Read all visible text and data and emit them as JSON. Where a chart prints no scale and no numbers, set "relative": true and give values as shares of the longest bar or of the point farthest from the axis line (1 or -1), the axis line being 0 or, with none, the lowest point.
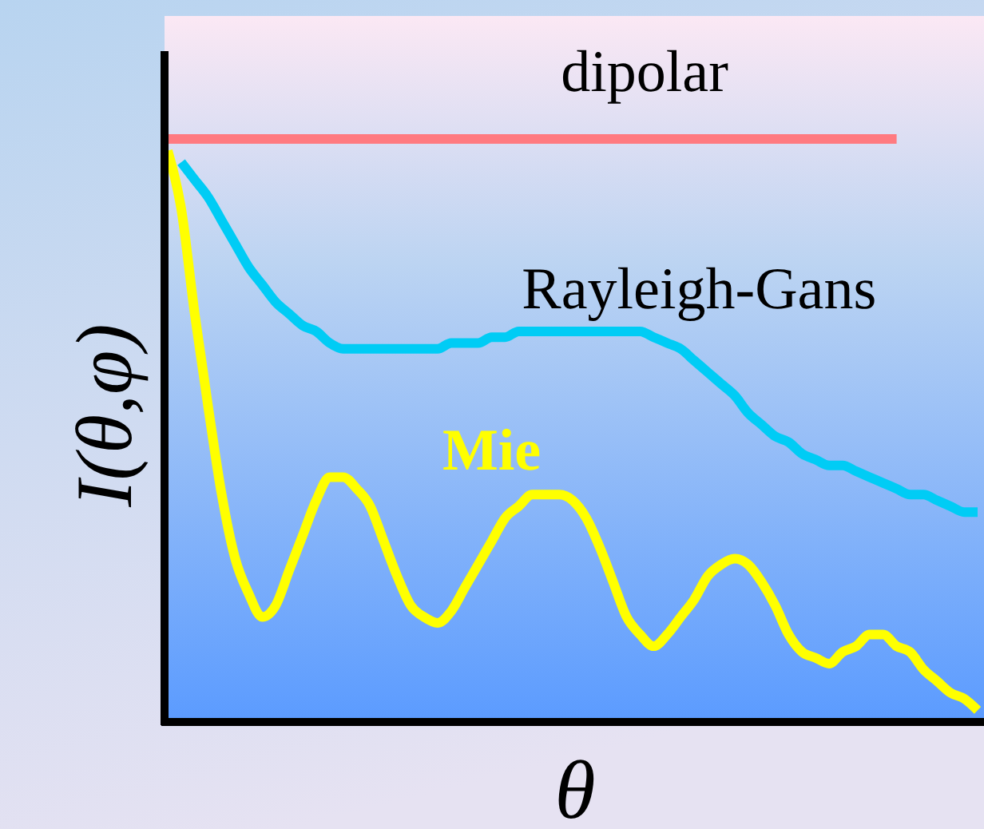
{
  "chart_data": {
    "type": "line",
    "relative": true,
    "xlabel": "θ",
    "ylabel": "I(θ,φ)",
    "legend": false,
    "grid": false,
    "marker": "none",
    "line_style": "solid",
    "categories": [
      null,
      null,
      null,
      null,
      null,
      null,
      null,
      null,
      null,
      null,
      null,
      null,
      null,
      null,
      null,
      null,
      null,
      null,
      null,
      null,
      null,
      null,
      null,
      null,
      null,
      null,
      null,
      null,
      null,
      null,
      null,
      null,
      null,
      null,
      null,
      null,
      null,
      null,
      null,
      null,
      null,
      null,
      null,
      null,
      null,
      null,
      null,
      null,
      null,
      null,
      null,
      null,
      null,
      null,
      null,
      null,
      null,
      null,
      null,
      null,
      null
    ],
    "series": [
      {
        "name": "dipolar",
        "color": "#ff7a80",
        "values": [
          1,
          1,
          1,
          1,
          1,
          1,
          1,
          1,
          1,
          1,
          1,
          1,
          1,
          1,
          1,
          1,
          1,
          1,
          1,
          1,
          1,
          1,
          1,
          1,
          1,
          1,
          1,
          1,
          1,
          1,
          1,
          1,
          1,
          1,
          1,
          1,
          1,
          1,
          1,
          1,
          1,
          1,
          1,
          1,
          1,
          1,
          1,
          1,
          1,
          1,
          1,
          1,
          1,
          1,
          1,
          null,
          null,
          null,
          null,
          null,
          null
        ]
      },
      {
        "name": "Rayleigh-Gans",
        "color": "#00ccf5",
        "values": [
          null,
          0.96,
          0.93,
          0.9,
          0.86,
          0.82,
          0.78,
          0.75,
          0.72,
          0.7,
          0.68,
          0.67,
          0.65,
          0.64,
          0.64,
          0.64,
          0.64,
          0.64,
          0.64,
          0.64,
          0.64,
          0.65,
          0.65,
          0.65,
          0.66,
          0.66,
          0.67,
          0.67,
          0.67,
          0.67,
          0.67,
          0.67,
          0.67,
          0.67,
          0.67,
          0.67,
          0.66,
          0.65,
          0.64,
          0.62,
          0.6,
          0.58,
          0.56,
          0.53,
          0.51,
          0.49,
          0.48,
          0.46,
          0.45,
          0.44,
          0.44,
          0.43,
          0.42,
          0.41,
          0.4,
          0.39,
          0.39,
          0.38,
          0.37,
          0.36,
          0.36
        ]
      },
      {
        "name": "Mie",
        "color": "#ffff00",
        "values": [
          0.98,
          0.88,
          0.7,
          0.54,
          0.39,
          0.28,
          0.22,
          0.18,
          0.2,
          0.26,
          0.32,
          0.38,
          0.42,
          0.42,
          0.4,
          0.37,
          0.31,
          0.25,
          0.2,
          0.18,
          0.17,
          0.19,
          0.23,
          0.27,
          0.31,
          0.35,
          0.37,
          0.39,
          0.39,
          0.39,
          0.38,
          0.35,
          0.3,
          0.24,
          0.18,
          0.15,
          0.13,
          0.15,
          0.18,
          0.21,
          0.25,
          0.27,
          0.28,
          0.27,
          0.24,
          0.2,
          0.15,
          0.12,
          0.11,
          0.1,
          0.12,
          0.13,
          0.15,
          0.15,
          0.13,
          0.12,
          0.09,
          0.07,
          0.05,
          0.04,
          0.02
        ]
      }
    ]
  }
}
